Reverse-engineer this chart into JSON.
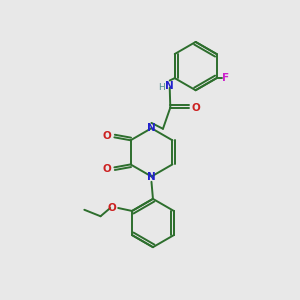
{
  "background_color": "#e8e8e8",
  "bond_color": "#2d6e2d",
  "n_color": "#2121cc",
  "o_color": "#cc2020",
  "f_color": "#cc22cc",
  "h_color": "#4a8e8e",
  "figsize": [
    3.0,
    3.0
  ],
  "dpi": 100,
  "xlim": [
    0,
    10
  ],
  "ylim": [
    0,
    10
  ]
}
